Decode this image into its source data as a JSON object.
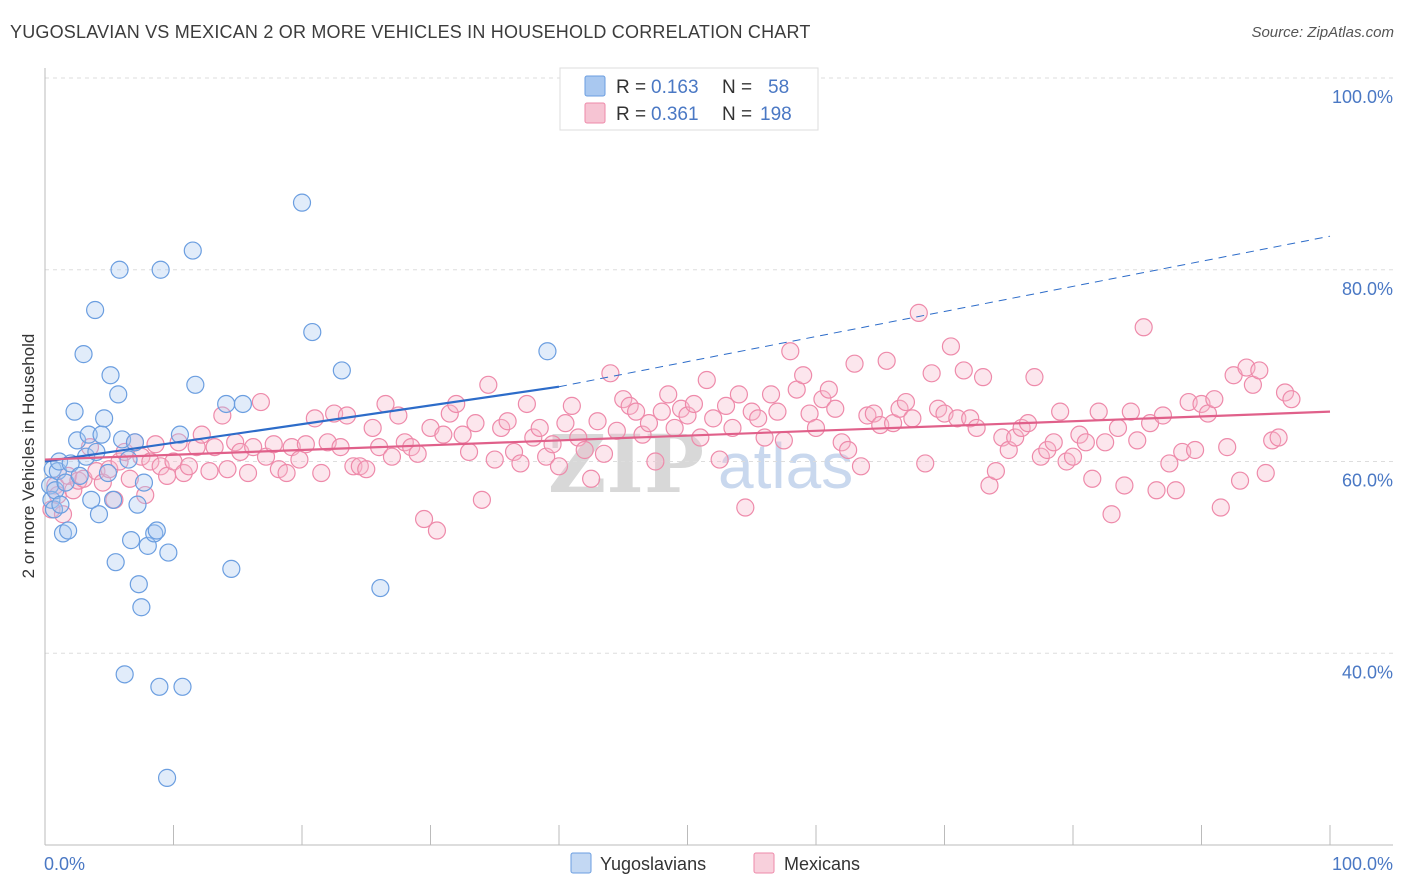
{
  "header": {
    "title": "YUGOSLAVIAN VS MEXICAN 2 OR MORE VEHICLES IN HOUSEHOLD CORRELATION CHART",
    "source": "Source: ZipAtlas.com"
  },
  "watermark": {
    "zip": "ZIP",
    "atlas": "atlas"
  },
  "legend": {
    "rows": [
      {
        "r_label": "R =",
        "r_value": "0.163",
        "n_label": "N =",
        "n_value": "58",
        "color": "#a9c8f0"
      },
      {
        "r_label": "R =",
        "r_value": "0.361",
        "n_label": "N =",
        "n_value": "198",
        "color": "#f6b8cb"
      }
    ]
  },
  "bottom_legend": {
    "items": [
      "Yugoslavians",
      "Mexicans"
    ]
  },
  "chart_data": {
    "type": "scatter",
    "title": "YUGOSLAVIAN VS MEXICAN 2 OR MORE VEHICLES IN HOUSEHOLD CORRELATION CHART",
    "xlabel": "",
    "ylabel": "2 or more Vehicles in Household",
    "xlim": [
      0,
      100
    ],
    "ylim": [
      20,
      100
    ],
    "x_tick_labels": [
      "0.0%",
      "100.0%"
    ],
    "y_ticks": [
      40,
      60,
      80,
      100
    ],
    "y_tick_labels": [
      "40.0%",
      "60.0%",
      "80.0%",
      "100.0%"
    ],
    "grid": true,
    "colors": {
      "yugoslavians": "#6b9ee0",
      "mexicans": "#ee8aaa",
      "blue_line": "#2d6cc9",
      "pink_line": "#e0608a"
    },
    "series": [
      {
        "name": "Yugoslavians",
        "r": 0.163,
        "n": 58,
        "trend": {
          "x0": 0,
          "y0": 60.0,
          "x1": 40,
          "y1": 67.8,
          "dashed_to_x": 100,
          "dashed_to_y": 83.5
        },
        "points": [
          [
            0.4,
            57.5
          ],
          [
            0.5,
            56.0
          ],
          [
            0.6,
            59.2
          ],
          [
            0.7,
            55.0
          ],
          [
            0.8,
            57.0
          ],
          [
            1.0,
            59.0
          ],
          [
            1.1,
            60.0
          ],
          [
            1.2,
            55.5
          ],
          [
            1.4,
            52.5
          ],
          [
            1.6,
            57.8
          ],
          [
            1.8,
            52.8
          ],
          [
            2.0,
            59.8
          ],
          [
            2.3,
            65.2
          ],
          [
            2.5,
            62.2
          ],
          [
            2.7,
            58.5
          ],
          [
            3.0,
            71.2
          ],
          [
            3.2,
            60.5
          ],
          [
            3.4,
            62.8
          ],
          [
            3.6,
            56.0
          ],
          [
            3.9,
            75.8
          ],
          [
            4.0,
            61.0
          ],
          [
            4.2,
            54.5
          ],
          [
            4.4,
            62.8
          ],
          [
            4.6,
            64.5
          ],
          [
            4.9,
            58.8
          ],
          [
            5.1,
            69.0
          ],
          [
            5.3,
            56.0
          ],
          [
            5.5,
            49.5
          ],
          [
            5.7,
            67.0
          ],
          [
            5.8,
            80.0
          ],
          [
            6.0,
            62.3
          ],
          [
            6.2,
            37.8
          ],
          [
            6.5,
            60.2
          ],
          [
            6.7,
            51.8
          ],
          [
            7.0,
            62.0
          ],
          [
            7.2,
            55.5
          ],
          [
            7.3,
            47.2
          ],
          [
            7.5,
            44.8
          ],
          [
            7.7,
            57.8
          ],
          [
            8.0,
            51.2
          ],
          [
            8.5,
            52.5
          ],
          [
            8.7,
            52.8
          ],
          [
            8.9,
            36.5
          ],
          [
            9.0,
            80.0
          ],
          [
            9.5,
            27.0
          ],
          [
            9.6,
            50.5
          ],
          [
            10.5,
            62.8
          ],
          [
            10.7,
            36.5
          ],
          [
            11.5,
            82.0
          ],
          [
            11.7,
            68.0
          ],
          [
            14.1,
            66.0
          ],
          [
            14.5,
            48.8
          ],
          [
            15.4,
            66.0
          ],
          [
            20.0,
            87.0
          ],
          [
            20.8,
            73.5
          ],
          [
            23.1,
            69.5
          ],
          [
            26.1,
            46.8
          ],
          [
            39.1,
            71.5
          ]
        ]
      },
      {
        "name": "Mexicans",
        "r": 0.361,
        "n": 198,
        "trend": {
          "x0": 0,
          "y0": 60.2,
          "x1": 100,
          "y1": 65.2
        },
        "points": [
          [
            0.5,
            55.0
          ],
          [
            0.8,
            57.5
          ],
          [
            1.0,
            56.5
          ],
          [
            1.4,
            54.5
          ],
          [
            1.8,
            58.5
          ],
          [
            2.2,
            57.0
          ],
          [
            2.6,
            58.0
          ],
          [
            3.0,
            58.2
          ],
          [
            3.5,
            61.5
          ],
          [
            4.0,
            59.0
          ],
          [
            4.5,
            57.8
          ],
          [
            5.0,
            59.2
          ],
          [
            5.4,
            56.0
          ],
          [
            5.8,
            60.0
          ],
          [
            6.2,
            61.0
          ],
          [
            6.6,
            58.2
          ],
          [
            7.0,
            62.0
          ],
          [
            7.5,
            60.5
          ],
          [
            7.8,
            56.5
          ],
          [
            8.2,
            60.0
          ],
          [
            8.6,
            61.8
          ],
          [
            9.0,
            59.5
          ],
          [
            9.5,
            58.5
          ],
          [
            10.0,
            60.0
          ],
          [
            10.4,
            62.0
          ],
          [
            10.8,
            58.8
          ],
          [
            11.2,
            59.5
          ],
          [
            11.8,
            61.5
          ],
          [
            12.2,
            62.8
          ],
          [
            12.8,
            59.0
          ],
          [
            13.2,
            61.5
          ],
          [
            13.8,
            64.8
          ],
          [
            14.2,
            59.2
          ],
          [
            14.8,
            62.0
          ],
          [
            15.2,
            61.0
          ],
          [
            15.8,
            58.8
          ],
          [
            16.2,
            61.5
          ],
          [
            16.8,
            66.2
          ],
          [
            17.2,
            60.5
          ],
          [
            17.8,
            61.8
          ],
          [
            18.2,
            59.2
          ],
          [
            18.8,
            58.8
          ],
          [
            19.2,
            61.5
          ],
          [
            19.8,
            60.2
          ],
          [
            20.3,
            61.8
          ],
          [
            21.0,
            64.5
          ],
          [
            21.5,
            58.8
          ],
          [
            22.0,
            62.0
          ],
          [
            22.5,
            65.0
          ],
          [
            23.0,
            61.5
          ],
          [
            23.5,
            64.8
          ],
          [
            24.0,
            59.5
          ],
          [
            24.5,
            59.5
          ],
          [
            25.0,
            59.2
          ],
          [
            25.5,
            63.5
          ],
          [
            26.0,
            61.5
          ],
          [
            26.5,
            66.0
          ],
          [
            27.0,
            60.5
          ],
          [
            27.5,
            64.8
          ],
          [
            28.0,
            62.0
          ],
          [
            28.5,
            61.5
          ],
          [
            29.0,
            60.8
          ],
          [
            29.5,
            54.0
          ],
          [
            30.0,
            63.5
          ],
          [
            30.5,
            52.8
          ],
          [
            31.0,
            62.8
          ],
          [
            31.5,
            65.0
          ],
          [
            32.0,
            66.0
          ],
          [
            32.5,
            62.8
          ],
          [
            33.0,
            61.0
          ],
          [
            33.5,
            64.0
          ],
          [
            34.0,
            56.0
          ],
          [
            34.5,
            68.0
          ],
          [
            35.0,
            60.2
          ],
          [
            35.5,
            63.5
          ],
          [
            36.0,
            64.2
          ],
          [
            36.5,
            61.0
          ],
          [
            37.0,
            59.8
          ],
          [
            37.5,
            66.0
          ],
          [
            38.0,
            62.5
          ],
          [
            38.5,
            63.5
          ],
          [
            39.0,
            60.5
          ],
          [
            39.5,
            61.8
          ],
          [
            40.0,
            59.5
          ],
          [
            40.5,
            64.0
          ],
          [
            41.0,
            65.8
          ],
          [
            41.5,
            62.5
          ],
          [
            42.0,
            61.2
          ],
          [
            42.5,
            58.2
          ],
          [
            43.0,
            64.2
          ],
          [
            43.5,
            60.8
          ],
          [
            44.0,
            69.2
          ],
          [
            44.5,
            63.2
          ],
          [
            45.0,
            66.5
          ],
          [
            45.5,
            65.8
          ],
          [
            46.0,
            65.2
          ],
          [
            46.5,
            62.8
          ],
          [
            47.0,
            64.0
          ],
          [
            47.5,
            60.0
          ],
          [
            48.0,
            65.2
          ],
          [
            48.5,
            67.0
          ],
          [
            49.0,
            63.5
          ],
          [
            49.5,
            65.5
          ],
          [
            50.0,
            64.8
          ],
          [
            50.5,
            66.0
          ],
          [
            51.0,
            62.5
          ],
          [
            51.5,
            68.5
          ],
          [
            52.0,
            64.5
          ],
          [
            52.5,
            60.2
          ],
          [
            53.0,
            65.8
          ],
          [
            53.5,
            63.5
          ],
          [
            54.0,
            67.0
          ],
          [
            54.5,
            55.2
          ],
          [
            55.0,
            65.2
          ],
          [
            55.5,
            64.5
          ],
          [
            56.0,
            62.5
          ],
          [
            56.5,
            67.0
          ],
          [
            57.0,
            65.2
          ],
          [
            57.5,
            62.2
          ],
          [
            58.0,
            71.5
          ],
          [
            58.5,
            67.5
          ],
          [
            59.0,
            69.0
          ],
          [
            59.5,
            65.0
          ],
          [
            60.0,
            63.5
          ],
          [
            60.5,
            66.5
          ],
          [
            61.0,
            67.5
          ],
          [
            61.5,
            65.5
          ],
          [
            62.0,
            62.0
          ],
          [
            62.5,
            61.2
          ],
          [
            63.0,
            70.2
          ],
          [
            63.5,
            59.5
          ],
          [
            64.0,
            64.8
          ],
          [
            64.5,
            65.0
          ],
          [
            65.0,
            63.8
          ],
          [
            65.5,
            70.5
          ],
          [
            66.0,
            64.0
          ],
          [
            66.5,
            65.5
          ],
          [
            67.0,
            66.2
          ],
          [
            67.5,
            64.5
          ],
          [
            68.0,
            75.5
          ],
          [
            68.5,
            59.8
          ],
          [
            69.0,
            69.2
          ],
          [
            69.5,
            65.5
          ],
          [
            70.0,
            65.0
          ],
          [
            70.5,
            72.0
          ],
          [
            71.0,
            64.5
          ],
          [
            71.5,
            69.5
          ],
          [
            72.0,
            64.5
          ],
          [
            72.5,
            63.5
          ],
          [
            73.0,
            68.8
          ],
          [
            73.5,
            57.5
          ],
          [
            74.0,
            59.0
          ],
          [
            74.5,
            62.5
          ],
          [
            75.0,
            61.2
          ],
          [
            75.5,
            62.5
          ],
          [
            76.0,
            63.5
          ],
          [
            76.5,
            64.0
          ],
          [
            77.0,
            68.8
          ],
          [
            77.5,
            60.5
          ],
          [
            78.0,
            61.2
          ],
          [
            78.5,
            62.0
          ],
          [
            79.0,
            65.2
          ],
          [
            79.5,
            60.0
          ],
          [
            80.0,
            60.5
          ],
          [
            80.5,
            62.8
          ],
          [
            81.0,
            62.0
          ],
          [
            81.5,
            58.2
          ],
          [
            82.0,
            65.2
          ],
          [
            82.5,
            62.0
          ],
          [
            83.0,
            54.5
          ],
          [
            83.5,
            63.5
          ],
          [
            84.0,
            57.5
          ],
          [
            84.5,
            65.2
          ],
          [
            85.0,
            62.2
          ],
          [
            85.5,
            74.0
          ],
          [
            86.0,
            64.0
          ],
          [
            86.5,
            57.0
          ],
          [
            87.0,
            64.8
          ],
          [
            87.5,
            59.8
          ],
          [
            88.0,
            57.0
          ],
          [
            88.5,
            61.0
          ],
          [
            89.0,
            66.2
          ],
          [
            89.5,
            61.2
          ],
          [
            90.0,
            66.0
          ],
          [
            90.5,
            65.0
          ],
          [
            91.0,
            66.5
          ],
          [
            91.5,
            55.2
          ],
          [
            92.0,
            61.5
          ],
          [
            92.5,
            69.0
          ],
          [
            93.0,
            58.0
          ],
          [
            93.5,
            69.8
          ],
          [
            94.0,
            68.0
          ],
          [
            94.5,
            69.5
          ],
          [
            95.0,
            58.8
          ],
          [
            95.5,
            62.2
          ],
          [
            96.0,
            62.5
          ],
          [
            96.5,
            67.2
          ],
          [
            97.0,
            66.5
          ]
        ]
      }
    ]
  }
}
